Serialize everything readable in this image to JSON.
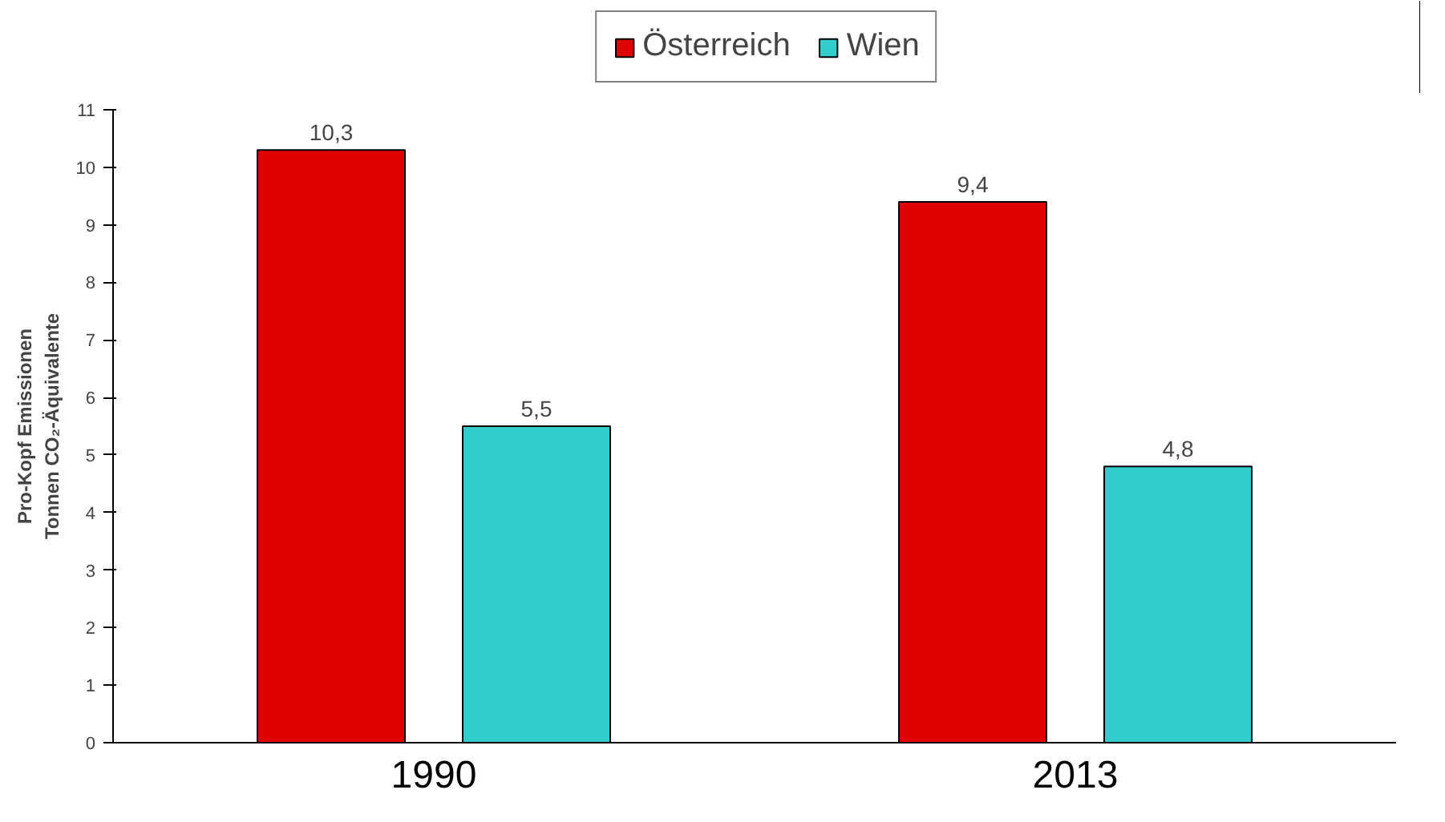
{
  "chart_data": {
    "type": "bar",
    "categories": [
      "1990",
      "2013"
    ],
    "ylabel": "Pro-Kopf Emissionen\nTonnen CO₂-Äquivalente",
    "ylim": [
      0,
      11
    ],
    "yticks": [
      0,
      1,
      2,
      3,
      4,
      5,
      6,
      7,
      8,
      9,
      10,
      11
    ],
    "grid": false,
    "legend": "top",
    "series": [
      {
        "name": "Österreich",
        "color": "#e00000",
        "values": [
          10.3,
          9.4
        ],
        "value_labels": [
          "10,3",
          "9,4"
        ]
      },
      {
        "name": "Wien",
        "color": "#33cccc",
        "values": [
          5.5,
          4.8
        ],
        "value_labels": [
          "5,5",
          "4,8"
        ]
      }
    ]
  }
}
